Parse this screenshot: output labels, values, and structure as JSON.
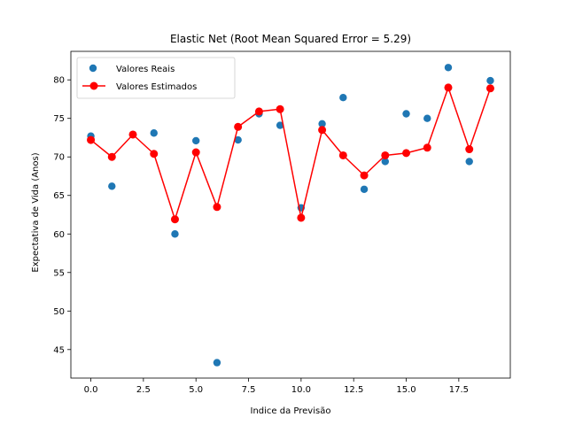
{
  "chart_data": {
    "type": "scatter+line",
    "title": "Elastic Net (Root Mean Squared Error = 5.29)",
    "xlabel": "Indice da Previsão",
    "ylabel": "Expectativa de Vida (Anos)",
    "xlim": [
      -0.95,
      19.95
    ],
    "ylim": [
      41.3,
      83.7
    ],
    "x_ticks": [
      0.0,
      2.5,
      5.0,
      7.5,
      10.0,
      12.5,
      15.0,
      17.5
    ],
    "x_tick_labels": [
      "0.0",
      "2.5",
      "5.0",
      "7.5",
      "10.0",
      "12.5",
      "15.0",
      "17.5"
    ],
    "y_ticks": [
      45,
      50,
      55,
      60,
      65,
      70,
      75,
      80
    ],
    "y_tick_labels": [
      "45",
      "50",
      "55",
      "60",
      "65",
      "70",
      "75",
      "80"
    ],
    "grid": false,
    "legend_position": "top-left",
    "x": [
      0,
      1,
      2,
      3,
      4,
      5,
      6,
      7,
      8,
      9,
      10,
      11,
      12,
      13,
      14,
      15,
      16,
      17,
      18,
      19
    ],
    "series": [
      {
        "name": "Valores Reais",
        "kind": "scatter",
        "color": "#1f77b4",
        "values": [
          72.7,
          66.2,
          72.9,
          73.1,
          60.0,
          72.1,
          43.3,
          72.2,
          75.6,
          74.1,
          63.4,
          74.3,
          77.7,
          65.8,
          69.4,
          75.6,
          75.0,
          81.6,
          69.4,
          79.9
        ]
      },
      {
        "name": "Valores Estimados",
        "kind": "line-marker",
        "color": "#ff0000",
        "values": [
          72.2,
          70.0,
          72.9,
          70.4,
          61.9,
          70.6,
          63.5,
          73.9,
          75.9,
          76.2,
          62.1,
          73.5,
          70.2,
          67.6,
          70.2,
          70.5,
          71.2,
          79.0,
          71.0,
          78.9
        ]
      }
    ]
  }
}
